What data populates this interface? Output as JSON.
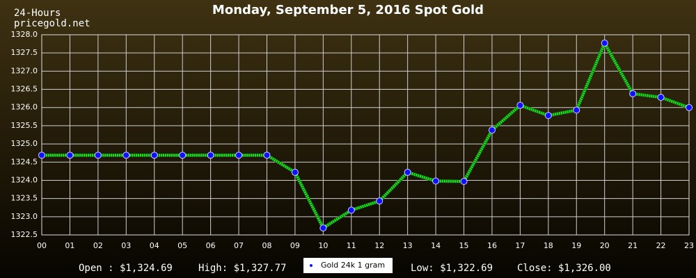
{
  "chart_data": {
    "type": "line",
    "title": "Monday, September 5, 2016 Spot Gold",
    "period_label": "24-Hours",
    "source": "pricegold.net",
    "categories": [
      "00",
      "01",
      "02",
      "03",
      "04",
      "05",
      "06",
      "07",
      "08",
      "09",
      "10",
      "11",
      "12",
      "13",
      "14",
      "15",
      "16",
      "17",
      "18",
      "19",
      "20",
      "21",
      "22",
      "23"
    ],
    "series": [
      {
        "name": "Gold 24k 1 gram",
        "color": "#22dd22",
        "marker_color": "#1010ff",
        "values": [
          1324.69,
          1324.69,
          1324.69,
          1324.69,
          1324.69,
          1324.69,
          1324.69,
          1324.69,
          1324.69,
          1324.22,
          1322.69,
          1323.18,
          1323.43,
          1324.22,
          1323.98,
          1323.97,
          1325.38,
          1326.06,
          1325.78,
          1325.93,
          1327.77,
          1326.38,
          1326.28,
          1326.0
        ]
      }
    ],
    "ylim": [
      1322.5,
      1328.0
    ],
    "yticks": [
      1322.5,
      {
        "value": 1323,
        "label": "1323.0"
      },
      1323.5,
      {
        "value": 1324,
        "label": "1324.0"
      },
      1324.5,
      {
        "value": 1325,
        "label": "1325.0"
      },
      1325.5,
      {
        "value": 1326,
        "label": "1326.0"
      },
      1326.5,
      {
        "value": 1327,
        "label": "1327.0"
      },
      1327.5,
      {
        "value": 1328,
        "label": "1328.0"
      }
    ],
    "grid": true,
    "summary": {
      "open": "Open : $1,324.69",
      "high": "High: $1,327.77",
      "low": "Low: $1,322.69",
      "close": "Close: $1,326.00"
    }
  }
}
